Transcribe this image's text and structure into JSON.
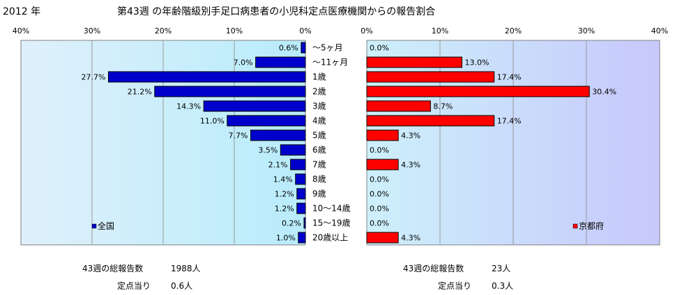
{
  "header": {
    "year": "2012 年",
    "title": "第43週 の年齢階級別手足口病患者の小児科定点医療機関からの報告割合"
  },
  "chart_data": [
    {
      "type": "bar",
      "orientation": "horizontal-reversed",
      "series": [
        {
          "name": "全国",
          "color": "#0000cc",
          "values": [
            0.6,
            7.0,
            27.7,
            21.2,
            14.3,
            11.0,
            7.7,
            3.5,
            2.1,
            1.4,
            1.2,
            1.2,
            0.2,
            1.0
          ],
          "labels": [
            "0.6%",
            "7.0%",
            "27.7%",
            "21.2%",
            "14.3%",
            "11.0%",
            "7.7%",
            "3.5%",
            "2.1%",
            "1.4%",
            "1.2%",
            "1.2%",
            "0.2%",
            "1.0%"
          ]
        }
      ],
      "categories": [
        "～5ヶ月",
        "～11ヶ月",
        "1歳",
        "2歳",
        "3歳",
        "4歳",
        "5歳",
        "6歳",
        "7歳",
        "8歳",
        "9歳",
        "10～14歳",
        "15～19歳",
        "20歳以上"
      ],
      "xlim": [
        0,
        40
      ],
      "ticks": [
        "40%",
        "30%",
        "20%",
        "10%",
        "0%"
      ],
      "legend": "bottom-left",
      "grid": true
    },
    {
      "type": "bar",
      "orientation": "horizontal",
      "series": [
        {
          "name": "京都府",
          "color": "#ff0000",
          "values": [
            0.0,
            13.0,
            17.4,
            30.4,
            8.7,
            17.4,
            4.3,
            0.0,
            4.3,
            0.0,
            0.0,
            0.0,
            0.0,
            4.3
          ],
          "labels": [
            "0.0%",
            "13.0%",
            "17.4%",
            "30.4%",
            "8.7%",
            "17.4%",
            "4.3%",
            "0.0%",
            "4.3%",
            "0.0%",
            "0.0%",
            "0.0%",
            "0.0%",
            "4.3%"
          ]
        }
      ],
      "xlim": [
        0,
        40
      ],
      "ticks": [
        "0%",
        "10%",
        "20%",
        "30%",
        "40%"
      ],
      "legend": "bottom-right",
      "grid": true
    }
  ],
  "footer": {
    "national": {
      "total_label": "43週の総報告数",
      "total_value": "1988人",
      "per_label": "定点当り",
      "per_value": "0.6人"
    },
    "kyoto": {
      "total_label": "43週の総報告数",
      "total_value": "23人",
      "per_label": "定点当り",
      "per_value": "0.3人"
    }
  }
}
